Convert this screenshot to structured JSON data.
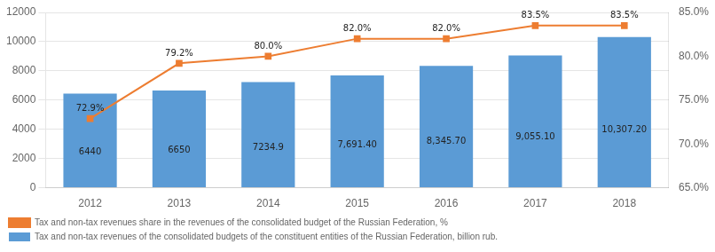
{
  "chart_data": {
    "type": "bar",
    "categories": [
      "2012",
      "2013",
      "2014",
      "2015",
      "2016",
      "2017",
      "2018"
    ],
    "series": [
      {
        "name": "Tax and non-tax revenues of the consolidated budgets of the constituent entities of the Russian Federation, billion rub.",
        "type": "bar",
        "color": "#5b9bd5",
        "values": [
          6440,
          6650,
          7234.9,
          7691.4,
          8345.7,
          9055.1,
          10307.2
        ],
        "value_labels": [
          "6440",
          "6650",
          "7234.9",
          "7,691.40",
          "8,345.70",
          "9,055.10",
          "10,307.20"
        ]
      },
      {
        "name": "Tax and non-tax revenues share in the revenues of the consolidated budget of the Russian Federation, %",
        "type": "line",
        "color": "#ed7d31",
        "marker": "square",
        "axis": "y2",
        "values": [
          72.9,
          79.2,
          80.0,
          82.0,
          82.0,
          83.5,
          83.5
        ],
        "value_labels": [
          "72.9%",
          "79.2%",
          "80.0%",
          "82.0%",
          "82.0%",
          "83.5%",
          "83.5%"
        ]
      }
    ],
    "ylim": [
      0,
      12000
    ],
    "yticks": [
      0,
      2000,
      4000,
      6000,
      8000,
      10000,
      12000
    ],
    "y2lim": [
      65.0,
      85.0
    ],
    "y2ticks": [
      {
        "value": 65.0,
        "label": "65.0%"
      },
      {
        "value": 70.0,
        "label": "70.0%"
      },
      {
        "value": 75.0,
        "label": "75.0%"
      },
      {
        "value": 80.0,
        "label": "80.0%"
      },
      {
        "value": 85.0,
        "label": "85.0%"
      }
    ],
    "grid": true,
    "data_labels": true,
    "legend": "bottom left"
  }
}
